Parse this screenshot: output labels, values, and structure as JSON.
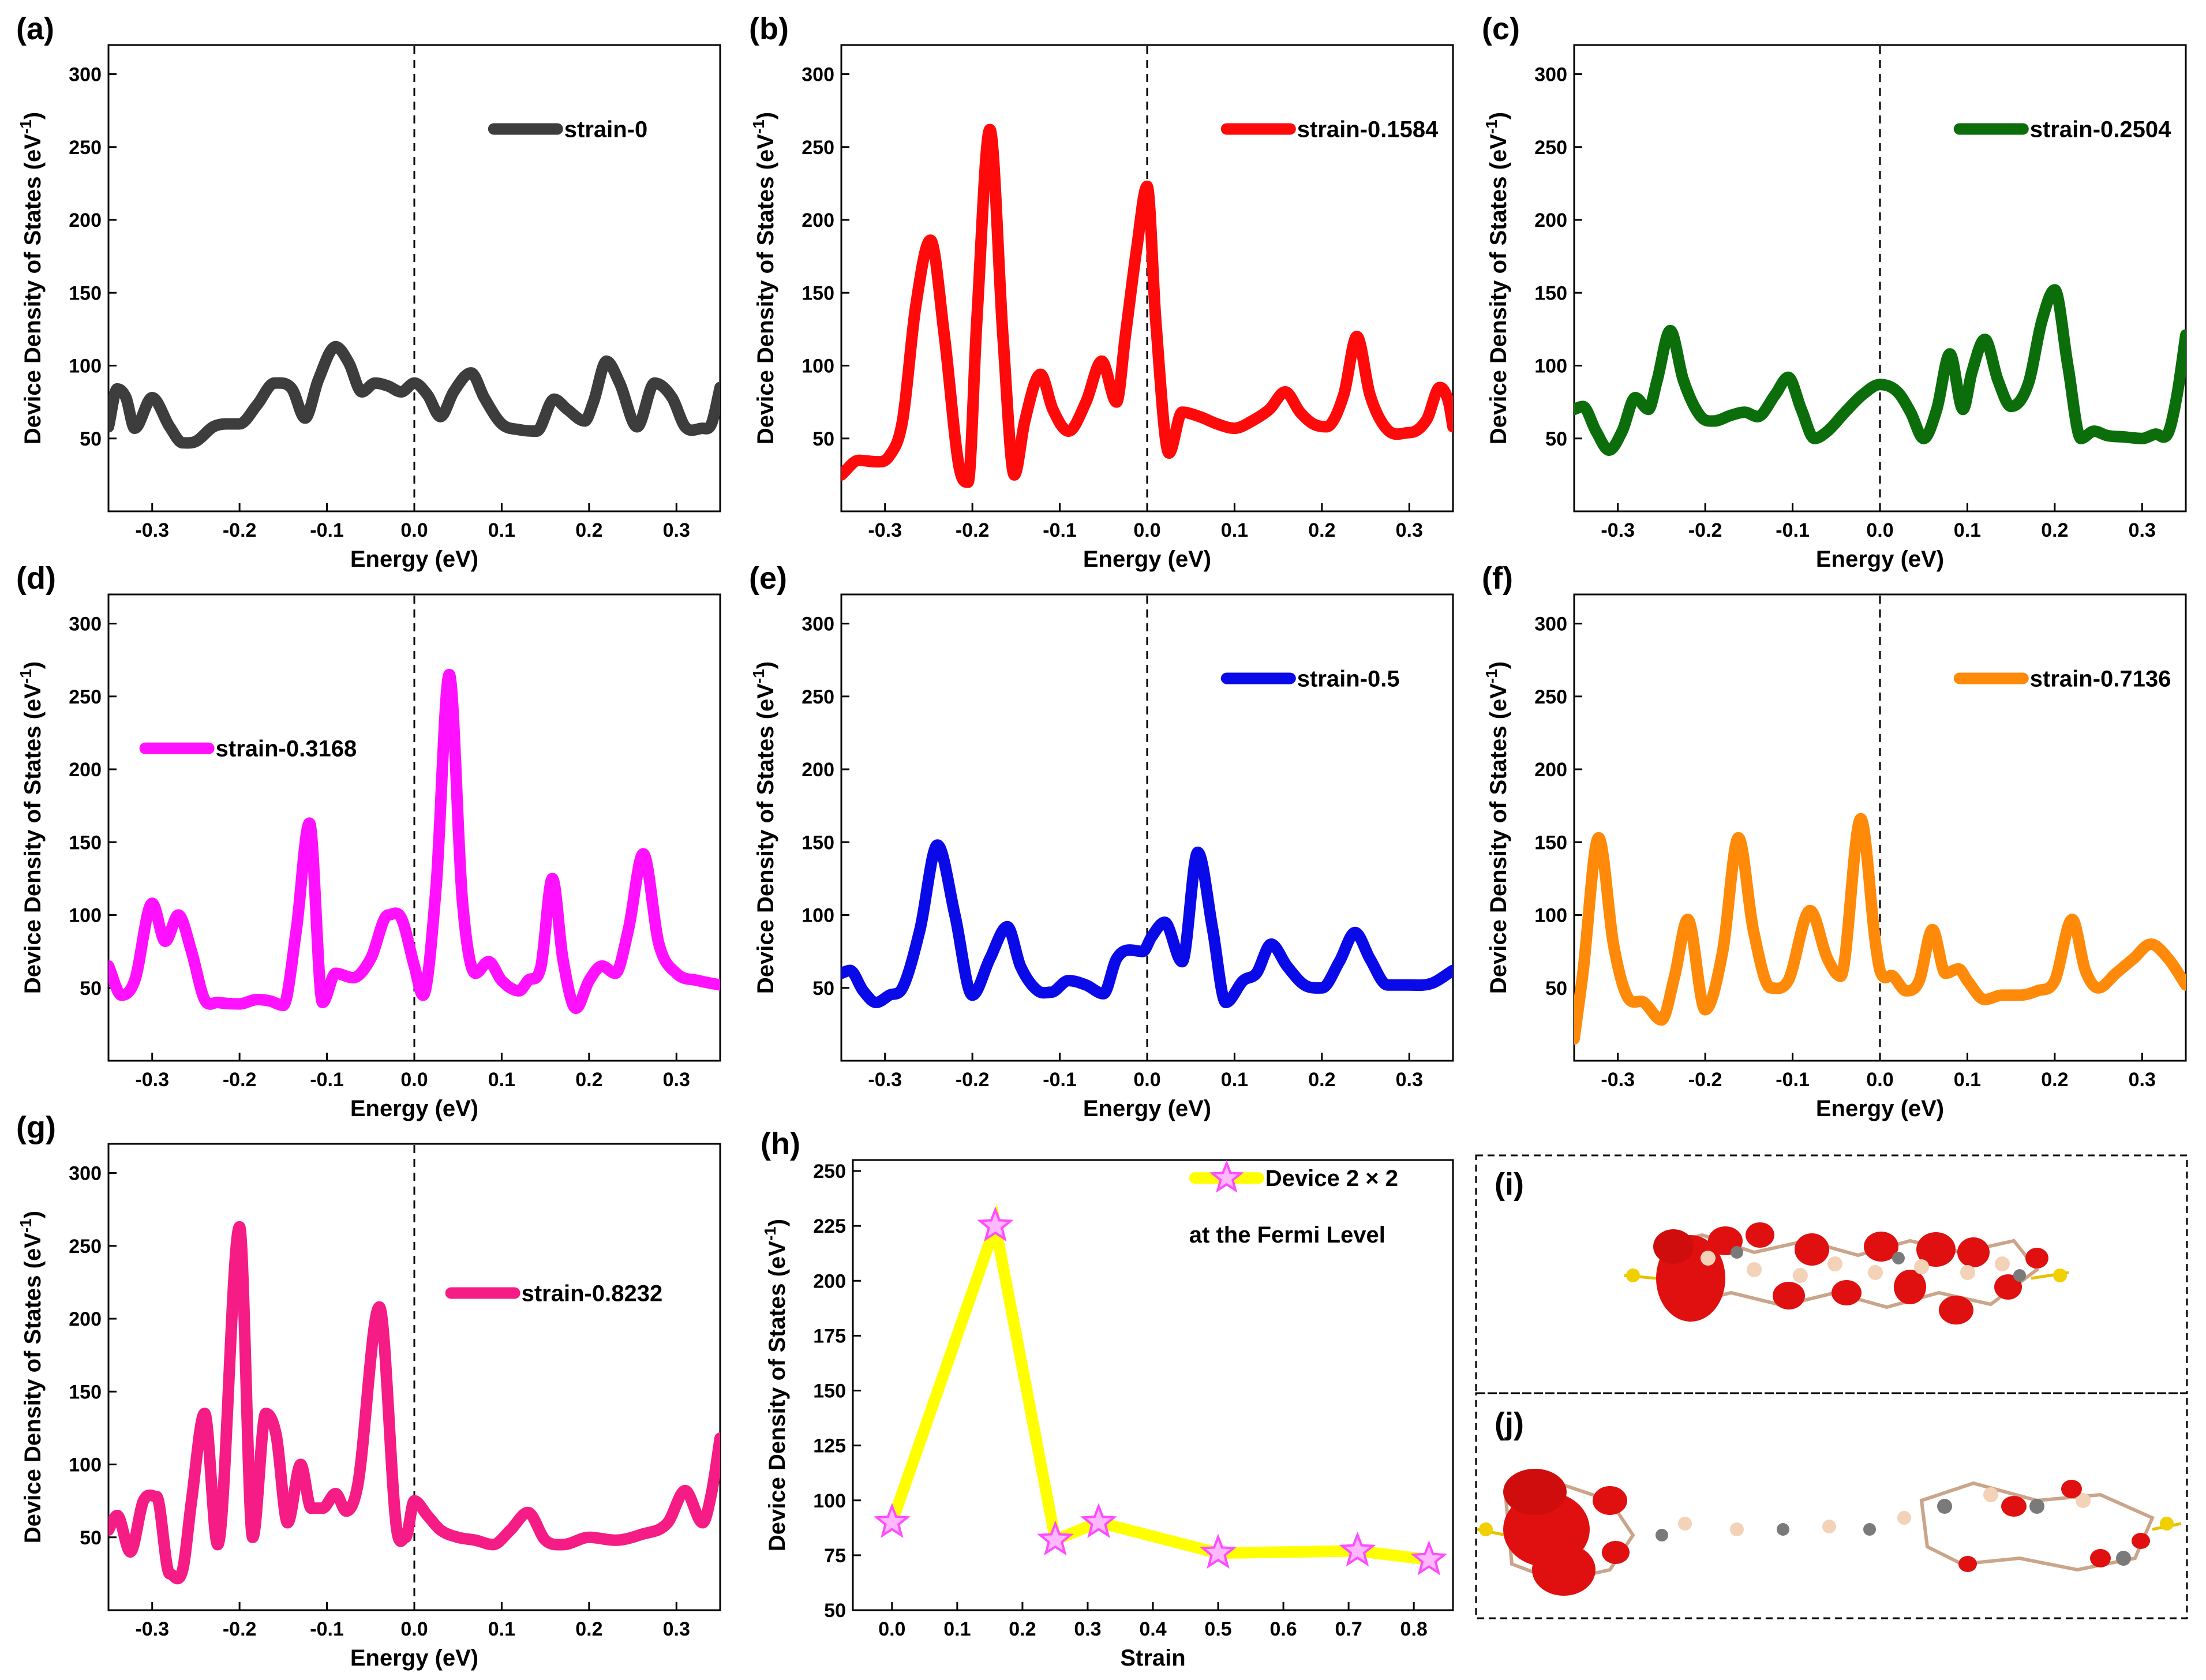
{
  "figure": {
    "ylabel_main": "Device Density of States (eV",
    "ylabel_sup": "-1",
    "ylabel_end": ")",
    "xlabel_energy": "Energy (eV)",
    "xlabel_strain": "Strain"
  },
  "chart_data": [
    {
      "panel": "(a)",
      "type": "line",
      "legend": "strain-0",
      "color": "#3d3d3d",
      "xlim": [
        -0.35,
        0.35
      ],
      "ylim": [
        0,
        320
      ],
      "xticks": [
        -0.3,
        -0.2,
        -0.1,
        0.0,
        0.1,
        0.2,
        0.3
      ],
      "xtick_labels": [
        "-0.3",
        "-0.2",
        "-0.1",
        "0.0",
        "0.1",
        "0.2",
        "0.3"
      ],
      "yticks": [
        50,
        100,
        150,
        200,
        250,
        300
      ],
      "ytick_labels": [
        "50",
        "100",
        "150",
        "200",
        "250",
        "300"
      ],
      "legend_pos": "right-upper",
      "x": [
        -0.35,
        -0.34,
        -0.33,
        -0.32,
        -0.3,
        -0.28,
        -0.265,
        -0.25,
        -0.23,
        -0.215,
        -0.2,
        -0.18,
        -0.16,
        -0.14,
        -0.125,
        -0.11,
        -0.09,
        -0.075,
        -0.06,
        -0.045,
        -0.03,
        -0.015,
        0.0,
        0.015,
        0.03,
        0.045,
        0.065,
        0.08,
        0.1,
        0.12,
        0.14,
        0.16,
        0.175,
        0.195,
        0.205,
        0.22,
        0.235,
        0.255,
        0.275,
        0.295,
        0.31,
        0.33,
        0.34,
        0.35
      ],
      "y": [
        58,
        84,
        78,
        57,
        78,
        58,
        47,
        48,
        58,
        60,
        60,
        73,
        88,
        84,
        64,
        90,
        113,
        102,
        82,
        88,
        86,
        82,
        88,
        80,
        65,
        82,
        95,
        78,
        60,
        56,
        55,
        77,
        70,
        62,
        75,
        103,
        88,
        58,
        88,
        78,
        58,
        57,
        60,
        85
      ]
    },
    {
      "panel": "(b)",
      "type": "line",
      "legend": "strain-0.1584",
      "color": "#ff0a0a",
      "xlim": [
        -0.35,
        0.35
      ],
      "ylim": [
        0,
        320
      ],
      "xticks": [
        -0.3,
        -0.2,
        -0.1,
        0.0,
        0.1,
        0.2,
        0.3
      ],
      "xtick_labels": [
        "-0.3",
        "-0.2",
        "-0.1",
        "0.0",
        "0.1",
        "0.2",
        "0.3"
      ],
      "yticks": [
        50,
        100,
        150,
        200,
        250,
        300
      ],
      "ytick_labels": [
        "50",
        "100",
        "150",
        "200",
        "250",
        "300"
      ],
      "legend_pos": "right-upper",
      "x": [
        -0.35,
        -0.33,
        -0.31,
        -0.295,
        -0.28,
        -0.265,
        -0.248,
        -0.232,
        -0.215,
        -0.205,
        -0.195,
        -0.18,
        -0.165,
        -0.152,
        -0.14,
        -0.122,
        -0.108,
        -0.09,
        -0.07,
        -0.052,
        -0.035,
        -0.025,
        -0.012,
        0.0,
        0.01,
        0.025,
        0.04,
        0.06,
        0.08,
        0.1,
        0.12,
        0.14,
        0.158,
        0.175,
        0.19,
        0.205,
        0.225,
        0.24,
        0.255,
        0.275,
        0.3,
        0.32,
        0.335,
        0.345,
        0.35
      ],
      "y": [
        25,
        35,
        34,
        38,
        62,
        140,
        186,
        120,
        30,
        20,
        130,
        262,
        120,
        25,
        62,
        94,
        70,
        55,
        75,
        103,
        75,
        120,
        180,
        223,
        130,
        40,
        68,
        65,
        60,
        57,
        62,
        70,
        82,
        68,
        60,
        58,
        80,
        120,
        80,
        56,
        54,
        63,
        85,
        75,
        58
      ]
    },
    {
      "panel": "(c)",
      "type": "line",
      "legend": "strain-0.2504",
      "color": "#0b6e0b",
      "xlim": [
        -0.35,
        0.35
      ],
      "ylim": [
        0,
        320
      ],
      "xticks": [
        -0.3,
        -0.2,
        -0.1,
        0.0,
        0.1,
        0.2,
        0.3
      ],
      "xtick_labels": [
        "-0.3",
        "-0.2",
        "-0.1",
        "0.0",
        "0.1",
        "0.2",
        "0.3"
      ],
      "yticks": [
        50,
        100,
        150,
        200,
        250,
        300
      ],
      "ytick_labels": [
        "50",
        "100",
        "150",
        "200",
        "250",
        "300"
      ],
      "legend_pos": "right-upper",
      "x": [
        -0.35,
        -0.34,
        -0.325,
        -0.31,
        -0.295,
        -0.28,
        -0.265,
        -0.255,
        -0.24,
        -0.225,
        -0.205,
        -0.19,
        -0.17,
        -0.155,
        -0.14,
        -0.12,
        -0.105,
        -0.09,
        -0.075,
        -0.06,
        -0.04,
        -0.02,
        0.0,
        0.02,
        0.035,
        0.05,
        0.065,
        0.08,
        0.095,
        0.105,
        0.12,
        0.135,
        0.15,
        0.17,
        0.185,
        0.2,
        0.215,
        0.23,
        0.245,
        0.26,
        0.28,
        0.3,
        0.315,
        0.33,
        0.34,
        0.35
      ],
      "y": [
        70,
        72,
        55,
        42,
        55,
        78,
        70,
        90,
        124,
        90,
        65,
        62,
        66,
        68,
        65,
        80,
        92,
        70,
        50,
        55,
        68,
        80,
        87,
        82,
        68,
        50,
        70,
        108,
        70,
        95,
        118,
        90,
        72,
        88,
        130,
        152,
        100,
        50,
        55,
        52,
        51,
        50,
        53,
        54,
        80,
        121
      ]
    },
    {
      "panel": "(d)",
      "type": "line",
      "legend": "strain-0.3168",
      "color": "#ff10ff",
      "xlim": [
        -0.35,
        0.35
      ],
      "ylim": [
        0,
        320
      ],
      "xticks": [
        -0.3,
        -0.2,
        -0.1,
        0.0,
        0.1,
        0.2,
        0.3
      ],
      "xtick_labels": [
        "-0.3",
        "-0.2",
        "-0.1",
        "0.0",
        "0.1",
        "0.2",
        "0.3"
      ],
      "yticks": [
        50,
        100,
        150,
        200,
        250,
        300
      ],
      "ytick_labels": [
        "50",
        "100",
        "150",
        "200",
        "250",
        "300"
      ],
      "legend_pos": "left-middle",
      "x": [
        -0.35,
        -0.335,
        -0.32,
        -0.3,
        -0.285,
        -0.27,
        -0.255,
        -0.24,
        -0.225,
        -0.2,
        -0.18,
        -0.165,
        -0.15,
        -0.135,
        -0.12,
        -0.105,
        -0.09,
        -0.07,
        -0.05,
        -0.03,
        -0.015,
        0.0,
        0.01,
        0.025,
        0.04,
        0.055,
        0.07,
        0.085,
        0.1,
        0.12,
        0.13,
        0.145,
        0.158,
        0.17,
        0.185,
        0.2,
        0.215,
        0.23,
        0.245,
        0.262,
        0.28,
        0.3,
        0.325,
        0.35
      ],
      "y": [
        65,
        45,
        55,
        108,
        82,
        100,
        75,
        42,
        40,
        39,
        42,
        41,
        38,
        90,
        163,
        40,
        60,
        57,
        70,
        100,
        98,
        65,
        45,
        120,
        265,
        110,
        60,
        68,
        55,
        48,
        55,
        65,
        125,
        70,
        36,
        55,
        65,
        60,
        90,
        142,
        80,
        60,
        55,
        52
      ]
    },
    {
      "panel": "(e)",
      "type": "line",
      "legend": "strain-0.5",
      "color": "#0a0ae8",
      "xlim": [
        -0.35,
        0.35
      ],
      "ylim": [
        0,
        320
      ],
      "xticks": [
        -0.3,
        -0.2,
        -0.1,
        0.0,
        0.1,
        0.2,
        0.3
      ],
      "xtick_labels": [
        "-0.3",
        "-0.2",
        "-0.1",
        "0.0",
        "0.1",
        "0.2",
        "0.3"
      ],
      "yticks": [
        50,
        100,
        150,
        200,
        250,
        300
      ],
      "ytick_labels": [
        "50",
        "100",
        "150",
        "200",
        "250",
        "300"
      ],
      "legend_pos": "right-upper",
      "x": [
        -0.35,
        -0.34,
        -0.325,
        -0.31,
        -0.295,
        -0.28,
        -0.26,
        -0.24,
        -0.22,
        -0.2,
        -0.18,
        -0.16,
        -0.145,
        -0.125,
        -0.11,
        -0.09,
        -0.07,
        -0.05,
        -0.035,
        -0.02,
        -0.005,
        0.005,
        0.02,
        0.04,
        0.058,
        0.075,
        0.09,
        0.11,
        0.125,
        0.142,
        0.16,
        0.18,
        0.2,
        0.22,
        0.238,
        0.255,
        0.275,
        0.3,
        0.325,
        0.35
      ],
      "y": [
        60,
        62,
        48,
        40,
        45,
        50,
        90,
        148,
        100,
        45,
        70,
        92,
        65,
        48,
        47,
        55,
        52,
        46,
        70,
        76,
        75,
        85,
        95,
        68,
        143,
        90,
        40,
        55,
        60,
        80,
        65,
        52,
        50,
        68,
        88,
        70,
        52,
        52,
        53,
        62
      ]
    },
    {
      "panel": "(f)",
      "type": "line",
      "legend": "strain-0.7136",
      "color": "#ff8a0a",
      "xlim": [
        -0.35,
        0.35
      ],
      "ylim": [
        0,
        320
      ],
      "xticks": [
        -0.3,
        -0.2,
        -0.1,
        0.0,
        0.1,
        0.2,
        0.3
      ],
      "xtick_labels": [
        "-0.3",
        "-0.2",
        "-0.1",
        "0.0",
        "0.1",
        "0.2",
        "0.3"
      ],
      "yticks": [
        50,
        100,
        150,
        200,
        250,
        300
      ],
      "ytick_labels": [
        "50",
        "100",
        "150",
        "200",
        "250",
        "300"
      ],
      "legend_pos": "right-upper",
      "x": [
        -0.35,
        -0.34,
        -0.322,
        -0.305,
        -0.29,
        -0.27,
        -0.25,
        -0.235,
        -0.22,
        -0.2,
        -0.18,
        -0.162,
        -0.145,
        -0.125,
        -0.105,
        -0.08,
        -0.06,
        -0.045,
        -0.022,
        -0.005,
        0.0,
        0.015,
        0.03,
        0.045,
        0.06,
        0.075,
        0.09,
        0.1,
        0.12,
        0.14,
        0.16,
        0.18,
        0.2,
        0.22,
        0.235,
        0.25,
        0.27,
        0.29,
        0.31,
        0.33,
        0.35
      ],
      "y": [
        15,
        60,
        153,
        80,
        45,
        40,
        28,
        58,
        97,
        35,
        75,
        153,
        90,
        50,
        55,
        103,
        70,
        58,
        166,
        80,
        62,
        58,
        48,
        55,
        90,
        60,
        63,
        55,
        42,
        45,
        45,
        48,
        55,
        97,
        62,
        50,
        60,
        70,
        80,
        70,
        52
      ]
    },
    {
      "panel": "(g)",
      "type": "line",
      "legend": "strain-0.8232",
      "color": "#f51c86",
      "xlim": [
        -0.35,
        0.35
      ],
      "ylim": [
        0,
        320
      ],
      "xticks": [
        -0.3,
        -0.2,
        -0.1,
        0.0,
        0.1,
        0.2,
        0.3
      ],
      "xtick_labels": [
        "-0.3",
        "-0.2",
        "-0.1",
        "0.0",
        "0.1",
        "0.2",
        "0.3"
      ],
      "yticks": [
        50,
        100,
        150,
        200,
        250,
        300
      ],
      "ytick_labels": [
        "50",
        "100",
        "150",
        "200",
        "250",
        "300"
      ],
      "legend_pos": "right-middle",
      "x": [
        -0.35,
        -0.34,
        -0.325,
        -0.31,
        -0.295,
        -0.28,
        -0.265,
        -0.255,
        -0.24,
        -0.225,
        -0.2,
        -0.185,
        -0.17,
        -0.158,
        -0.145,
        -0.13,
        -0.118,
        -0.105,
        -0.09,
        -0.078,
        -0.065,
        -0.04,
        -0.02,
        -0.01,
        0.0,
        0.015,
        0.03,
        0.05,
        0.07,
        0.09,
        0.11,
        0.13,
        0.15,
        0.17,
        0.2,
        0.23,
        0.26,
        0.29,
        0.31,
        0.33,
        0.34,
        0.35
      ],
      "y": [
        55,
        65,
        40,
        75,
        78,
        25,
        28,
        75,
        135,
        45,
        263,
        50,
        135,
        120,
        60,
        100,
        70,
        70,
        80,
        68,
        85,
        208,
        55,
        50,
        75,
        65,
        55,
        50,
        48,
        45,
        55,
        67,
        48,
        45,
        50,
        48,
        52,
        60,
        82,
        60,
        80,
        118
      ]
    },
    {
      "panel": "(h)",
      "type": "line",
      "legend": "Device 2 × 2",
      "legend_sub": "at the Fermi Level",
      "color": "#ffff00",
      "marker_color": "#ff4cff",
      "xlim": [
        -0.06,
        0.86
      ],
      "ylim": [
        50,
        255
      ],
      "xticks": [
        0.0,
        0.1,
        0.2,
        0.3,
        0.4,
        0.5,
        0.6,
        0.7,
        0.8
      ],
      "xtick_labels": [
        "0.0",
        "0.1",
        "0.2",
        "0.3",
        "0.4",
        "0.5",
        "0.6",
        "0.7",
        "0.8"
      ],
      "yticks": [
        50,
        75,
        100,
        125,
        150,
        175,
        200,
        225,
        250
      ],
      "ytick_labels": [
        "50",
        "75",
        "100",
        "125",
        "150",
        "175",
        "200",
        "225",
        "250"
      ],
      "legend_pos": "top-right",
      "x": [
        0.0,
        0.1584,
        0.2504,
        0.3168,
        0.5,
        0.7136,
        0.8232
      ],
      "y": [
        90,
        225,
        82,
        90,
        76,
        77,
        73
      ]
    }
  ],
  "structures": {
    "i_label": "(i)",
    "j_label": "(j)"
  }
}
